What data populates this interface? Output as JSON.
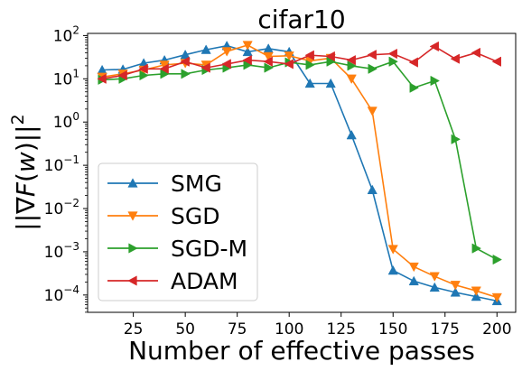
{
  "chart_data": {
    "type": "line",
    "title": "cifar10",
    "xlabel": "Number of effective passes",
    "ylabel": "||∇F(w)||²",
    "ylabel_parts": {
      "left": "||∇",
      "italic_F": "F",
      "paren_open": "(",
      "italic_w": "w",
      "paren_close": ")||",
      "sup": "2"
    },
    "y_scale": "log",
    "xlim": [
      3,
      209
    ],
    "ylim_log10": [
      -4.4,
      2.05
    ],
    "x_ticks": [
      25,
      50,
      75,
      100,
      125,
      150,
      175,
      200
    ],
    "y_ticks": [
      {
        "exp": 2,
        "base": "10",
        "sup": "2"
      },
      {
        "exp": 1,
        "base": "10",
        "sup": "1"
      },
      {
        "exp": 0,
        "base": "10",
        "sup": "0"
      },
      {
        "exp": -1,
        "base": "10",
        "sup": "−1"
      },
      {
        "exp": -2,
        "base": "10",
        "sup": "−2"
      },
      {
        "exp": -3,
        "base": "10",
        "sup": "−3"
      },
      {
        "exp": -4,
        "base": "10",
        "sup": "−4"
      }
    ],
    "legend_position": "lower-left",
    "grid": false,
    "series": [
      {
        "name": "SMG",
        "color": "#1f77b4",
        "marker": "triangle-up",
        "x": [
          10,
          20,
          30,
          40,
          50,
          60,
          70,
          80,
          90,
          100,
          110,
          120,
          130,
          140,
          150,
          160,
          170,
          180,
          190,
          200
        ],
        "y": [
          16,
          16.5,
          23,
          27,
          36,
          47,
          58,
          42,
          50,
          42,
          7.8,
          7.8,
          0.5,
          0.027,
          0.00037,
          0.00021,
          0.00015,
          0.000115,
          9.2e-05,
          7.3e-05
        ]
      },
      {
        "name": "SGD",
        "color": "#ff7f0e",
        "marker": "triangle-down",
        "x": [
          10,
          20,
          30,
          40,
          50,
          60,
          70,
          80,
          90,
          100,
          110,
          120,
          130,
          140,
          150,
          160,
          170,
          180,
          190,
          200
        ],
        "y": [
          11,
          13,
          16,
          21,
          23,
          21,
          43,
          60,
          33,
          34,
          26,
          30,
          10,
          1.8,
          0.00115,
          0.00045,
          0.00027,
          0.00017,
          0.000125,
          8.8e-05
        ]
      },
      {
        "name": "SGD-M",
        "color": "#2ca02c",
        "marker": "triangle-right",
        "x": [
          10,
          20,
          30,
          40,
          50,
          60,
          70,
          80,
          90,
          100,
          110,
          120,
          130,
          140,
          150,
          160,
          170,
          180,
          190,
          200
        ],
        "y": [
          9.5,
          10,
          12,
          13,
          13,
          16,
          18,
          21,
          18,
          24,
          21,
          25,
          20,
          17,
          25,
          6.2,
          9,
          0.4,
          0.0012,
          0.00066
        ]
      },
      {
        "name": "ADAM",
        "color": "#d62728",
        "marker": "triangle-left",
        "x": [
          10,
          20,
          30,
          40,
          50,
          60,
          70,
          80,
          90,
          100,
          110,
          120,
          130,
          140,
          150,
          160,
          170,
          180,
          190,
          200
        ],
        "y": [
          10,
          12,
          17,
          17,
          25,
          18,
          22,
          27,
          25,
          22,
          35,
          33,
          27,
          36,
          38,
          24,
          56,
          29,
          40,
          25
        ]
      }
    ]
  }
}
